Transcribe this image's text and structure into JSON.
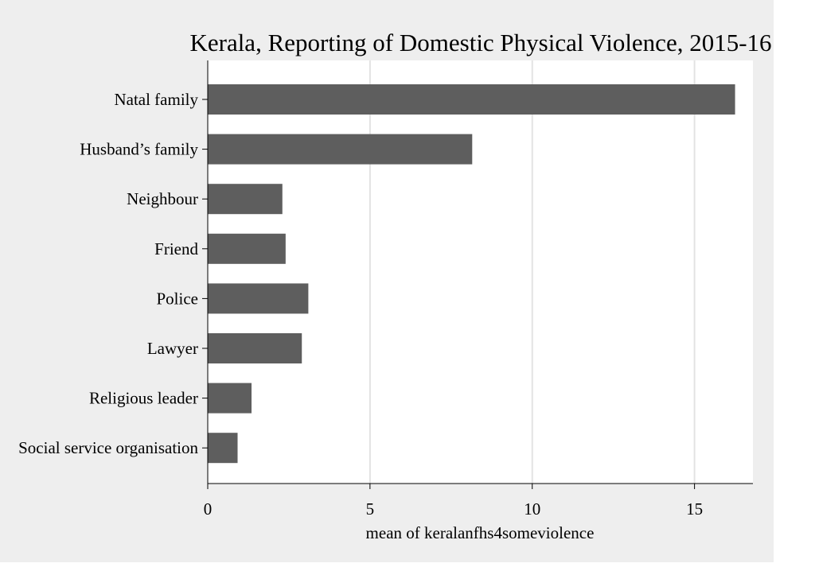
{
  "chart_data": {
    "type": "bar",
    "orientation": "horizontal",
    "title": "Kerala, Reporting of Domestic Physical Violence, 2015-16",
    "xlabel": "mean of keralanfhs4someviolence",
    "ylabel": "",
    "categories": [
      "Natal family",
      "Husband’s family",
      "Neighbour",
      "Friend",
      "Police",
      "Lawyer",
      "Religious leader",
      "Social service organisation"
    ],
    "values": [
      16.25,
      8.15,
      2.3,
      2.4,
      3.1,
      2.9,
      1.35,
      0.92
    ],
    "xlim": [
      0,
      16.8
    ],
    "xticks": [
      0,
      5,
      10,
      15
    ],
    "grid": true,
    "bar_color": "#5e5e5e",
    "background_color": "#eeeeee",
    "plot_background_color": "#ffffff",
    "grid_color": "#e3e3e3"
  }
}
